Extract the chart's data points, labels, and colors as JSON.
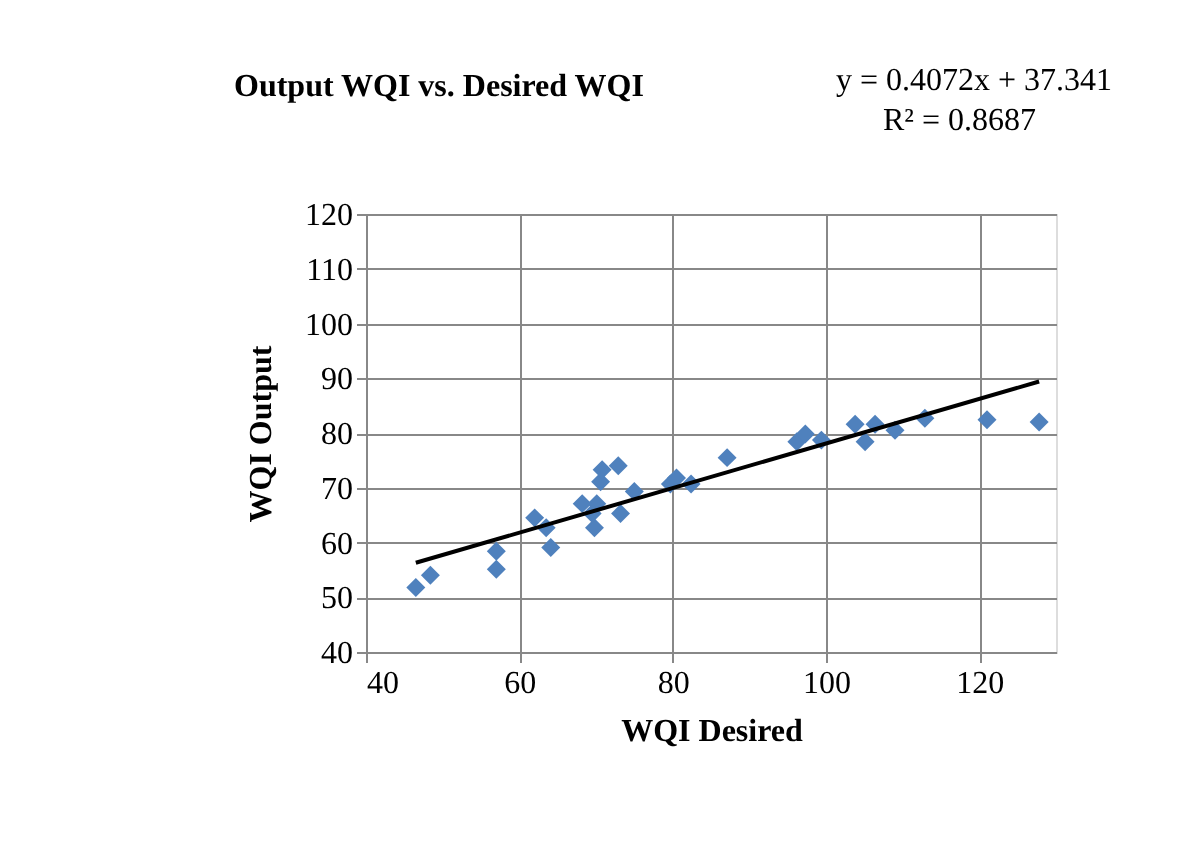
{
  "chart_data": {
    "type": "scatter",
    "title": "Output  WQI  vs. Desired WQI",
    "xlabel": "WQI Desired",
    "ylabel": "WQI Output",
    "annotations": [
      "y = 0.4072x + 37.341",
      "R² = 0.8687"
    ],
    "xlim": [
      40,
      130
    ],
    "xticks": [
      40,
      60,
      80,
      100,
      120
    ],
    "ylim": [
      40,
      120
    ],
    "yticks": [
      40,
      50,
      60,
      70,
      80,
      90,
      100,
      110,
      120
    ],
    "grid": true,
    "marker": "diamond",
    "series": [
      {
        "color": "#4f81bd",
        "x": [
          46.5,
          48.4,
          57.0,
          57.0,
          62.0,
          64.1,
          63.5,
          69.8,
          70.1,
          73.2,
          70.6,
          75.0,
          79.7,
          82.4,
          87.1,
          96.2,
          97.3,
          99.4,
          103.8,
          105.1,
          106.4,
          109.0,
          112.9,
          121.0,
          127.8,
          70.8,
          72.9,
          68.2,
          69.5,
          80.5
        ],
        "values": [
          51.8,
          54.0,
          58.4,
          55.1,
          64.5,
          59.1,
          62.7,
          62.7,
          67.1,
          65.3,
          71.1,
          69.3,
          70.7,
          70.7,
          75.5,
          78.4,
          79.8,
          78.7,
          81.6,
          78.4,
          81.6,
          80.5,
          82.7,
          82.4,
          82.0,
          73.3,
          74.0,
          67.1,
          65.3,
          71.8
        ]
      },
      {
        "type": "line",
        "color": "#000000",
        "marker": "none",
        "line_style": "solid",
        "x": [
          46.5,
          127.8
        ],
        "values": [
          56.3,
          89.4
        ]
      }
    ]
  }
}
